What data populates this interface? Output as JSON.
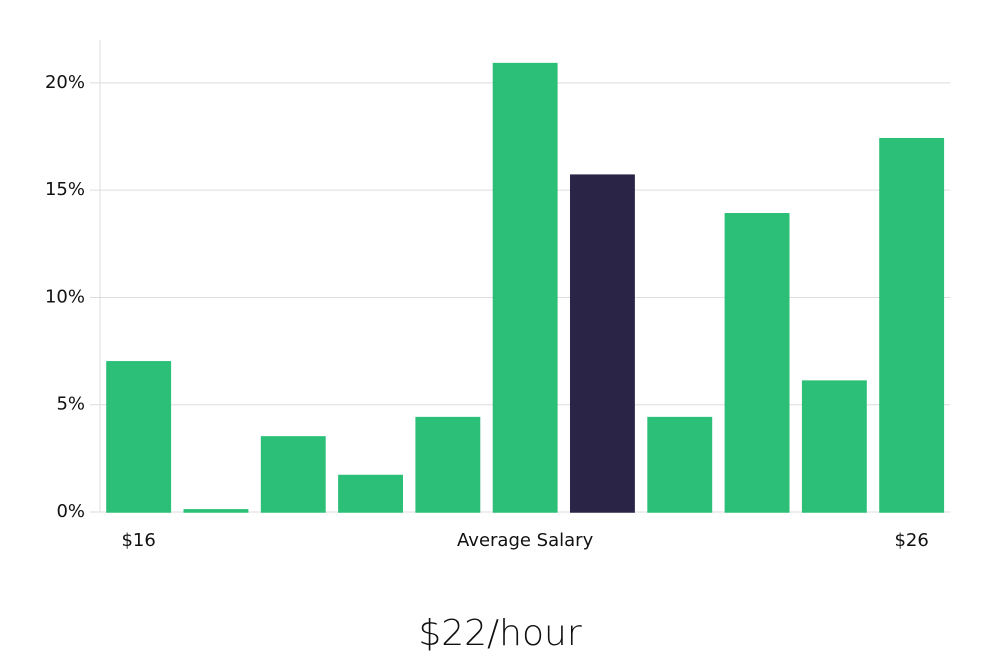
{
  "chart_data": {
    "type": "bar",
    "caption": "$22/hour",
    "categories": [
      "$16",
      null,
      null,
      null,
      null,
      "Average Salary",
      null,
      null,
      null,
      null,
      "$26"
    ],
    "values": [
      7.0,
      0.1,
      3.5,
      1.7,
      4.4,
      20.9,
      15.7,
      4.4,
      13.9,
      6.1,
      17.4
    ],
    "colors": [
      "#2bbf77",
      "#2bbf77",
      "#2bbf77",
      "#2bbf77",
      "#2bbf77",
      "#2bbf77",
      "#2a2547",
      "#2bbf77",
      "#2bbf77",
      "#2bbf77",
      "#2bbf77"
    ],
    "ylim": [
      0,
      22
    ],
    "yticks": [
      {
        "value": 0,
        "label": "0%"
      },
      {
        "value": 5,
        "label": "5%"
      },
      {
        "value": 10,
        "label": "10%"
      },
      {
        "value": 15,
        "label": "15%"
      },
      {
        "value": 20,
        "label": "20%"
      }
    ],
    "grid": true
  }
}
